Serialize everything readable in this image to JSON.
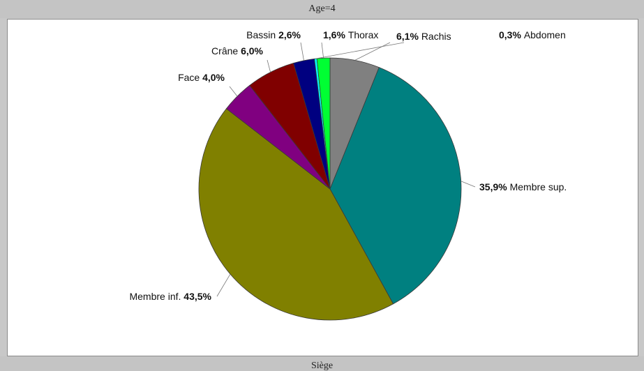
{
  "header": {
    "title": "Age=4"
  },
  "footer": {
    "caption": "Siège"
  },
  "chart_data": {
    "type": "pie",
    "title": "Age=4",
    "subtitle": "Siège",
    "slices": [
      {
        "label": "Rachis",
        "percent_label": "6,1%",
        "value": 6.1,
        "color": "#808080",
        "label_first": false
      },
      {
        "label": "Membre sup.",
        "percent_label": "35,9%",
        "value": 35.9,
        "color": "#008080",
        "label_first": false
      },
      {
        "label": "Membre inf.",
        "percent_label": "43,5%",
        "value": 43.5,
        "color": "#808000",
        "label_first": true
      },
      {
        "label": "Face",
        "percent_label": "4,0%",
        "value": 4.0,
        "color": "#800080",
        "label_first": true
      },
      {
        "label": "Crâne",
        "percent_label": "6,0%",
        "value": 6.0,
        "color": "#800000",
        "label_first": true
      },
      {
        "label": "Bassin",
        "percent_label": "2,6%",
        "value": 2.6,
        "color": "#000080",
        "label_first": true
      },
      {
        "label": "Abdomen",
        "percent_label": "0,3%",
        "value": 0.3,
        "color": "#00ffff",
        "label_first": false
      },
      {
        "label": "Thorax",
        "percent_label": "1,6%",
        "value": 1.6,
        "color": "#00ff33",
        "label_first": false
      }
    ]
  }
}
